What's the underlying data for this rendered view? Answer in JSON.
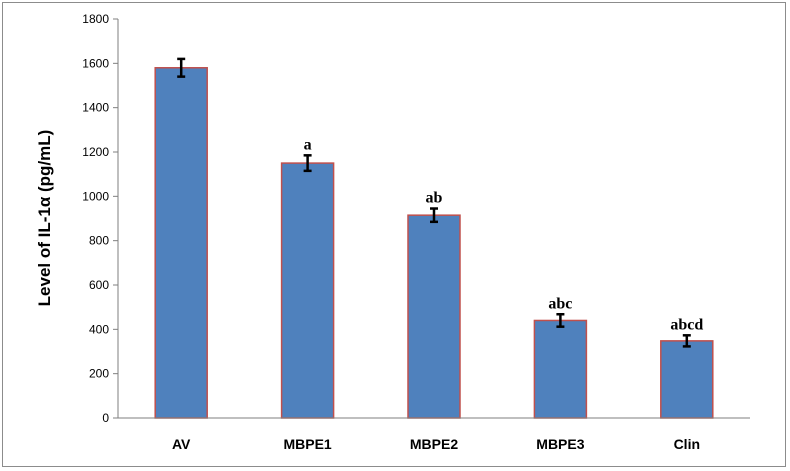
{
  "chart_data": {
    "type": "bar",
    "ylabel": "Level of IL-1α (pg/mL)",
    "categories": [
      "AV",
      "MBPE1",
      "MBPE2",
      "MBPE3",
      "Clin"
    ],
    "values": [
      1580,
      1150,
      915,
      440,
      348
    ],
    "errors": [
      40,
      35,
      30,
      28,
      25
    ],
    "annotations": [
      "",
      "a",
      "ab",
      "abc",
      "abcd"
    ],
    "ylim": [
      0,
      1800
    ],
    "yticks": [
      "0",
      "200",
      "400",
      "600",
      "800",
      "1000",
      "1200",
      "1400",
      "1600",
      "1800"
    ],
    "grid": false,
    "bar_color": "#4f81bd",
    "bar_edge_color": "#c0504d"
  }
}
